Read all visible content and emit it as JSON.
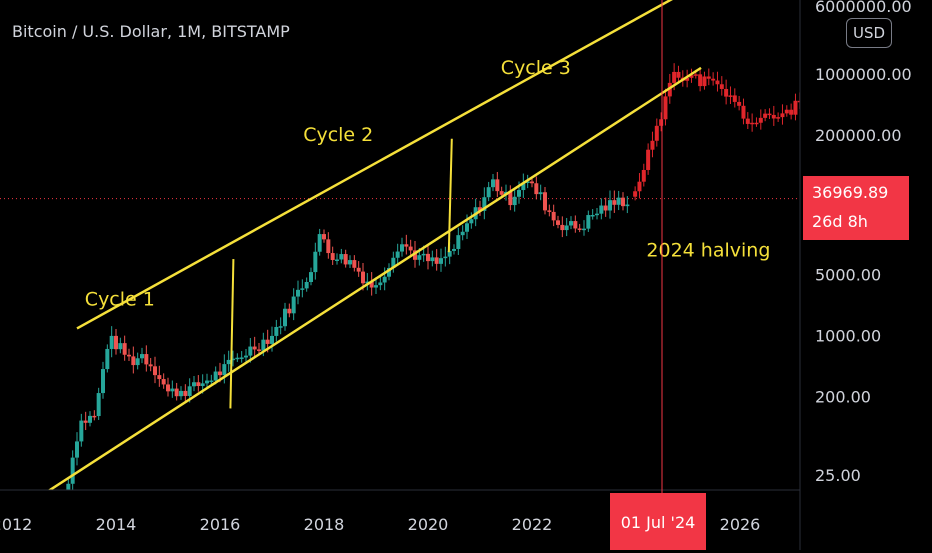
{
  "header": {
    "symbol_title": "Bitcoin / U.S. Dollar, 1M, BITSTAMP",
    "currency_button": "USD"
  },
  "price_label": {
    "price": "36969.89",
    "countdown": "26d 8h"
  },
  "crosshair": {
    "date_label": "01 Jul '24"
  },
  "colors": {
    "background": "#000000",
    "up_candle": "#26a69a",
    "down_candle": "#ef5350",
    "projection_candle": "#e0262b",
    "channel_lines": "#f5e03a",
    "annotation_text": "#f5e03a",
    "axis_text": "#d1d4dc",
    "crosshair": "#f23645"
  },
  "chart_data": {
    "type": "candlestick",
    "title": "Bitcoin / U.S. Dollar, 1M, BITSTAMP",
    "y_scale": "log",
    "x_tick_labels": [
      "2012",
      "2014",
      "2016",
      "2018",
      "2020",
      "2022",
      "2024",
      "2026"
    ],
    "y_tick_labels": [
      "6000000.00",
      "1000000.00",
      "200000.00",
      "5000.00",
      "1000.00",
      "200.00",
      "25.00"
    ],
    "last_price": 36969.89,
    "channel": {
      "lower": [
        {
          "x": 2012.35,
          "y": 12
        },
        {
          "x": 2025.25,
          "y": 1170000
        }
      ],
      "upper": [
        {
          "x": 2013.25,
          "y": 1200
        },
        {
          "x": 2025.25,
          "y": 11000000
        }
      ]
    },
    "cycle_markers": [
      {
        "x": 2016.2,
        "from": 145,
        "to": 7500
      },
      {
        "x": 2020.4,
        "from": 9000,
        "to": 180000
      }
    ],
    "annotations": [
      {
        "text": "Cycle 1",
        "x": 2013.4,
        "y": 2200
      },
      {
        "text": "Cycle 2",
        "x": 2017.6,
        "y": 170000
      },
      {
        "text": "Cycle 3",
        "x": 2021.4,
        "y": 1000000
      },
      {
        "text": "2024 halving",
        "x": 2024.2,
        "y": 8000
      }
    ],
    "halving_marker_x": 2024.5,
    "historical": [
      {
        "x": 2013.0,
        "y": 13
      },
      {
        "x": 2013.3,
        "y": 100
      },
      {
        "x": 2013.6,
        "y": 120
      },
      {
        "x": 2013.85,
        "y": 900
      },
      {
        "x": 2014.0,
        "y": 800
      },
      {
        "x": 2014.3,
        "y": 500
      },
      {
        "x": 2014.5,
        "y": 600
      },
      {
        "x": 2014.8,
        "y": 380
      },
      {
        "x": 2015.0,
        "y": 220
      },
      {
        "x": 2015.5,
        "y": 250
      },
      {
        "x": 2016.0,
        "y": 380
      },
      {
        "x": 2016.5,
        "y": 650
      },
      {
        "x": 2017.0,
        "y": 1000
      },
      {
        "x": 2017.4,
        "y": 2500
      },
      {
        "x": 2017.7,
        "y": 5000
      },
      {
        "x": 2017.95,
        "y": 15000
      },
      {
        "x": 2018.1,
        "y": 9000
      },
      {
        "x": 2018.5,
        "y": 7000
      },
      {
        "x": 2018.9,
        "y": 3800
      },
      {
        "x": 2019.0,
        "y": 3500
      },
      {
        "x": 2019.45,
        "y": 12000
      },
      {
        "x": 2019.8,
        "y": 8000
      },
      {
        "x": 2020.2,
        "y": 6500
      },
      {
        "x": 2020.5,
        "y": 10000
      },
      {
        "x": 2020.9,
        "y": 25000
      },
      {
        "x": 2021.25,
        "y": 58000
      },
      {
        "x": 2021.55,
        "y": 35000
      },
      {
        "x": 2021.85,
        "y": 62000
      },
      {
        "x": 2022.15,
        "y": 40000
      },
      {
        "x": 2022.45,
        "y": 20000
      },
      {
        "x": 2022.9,
        "y": 17000
      },
      {
        "x": 2023.3,
        "y": 28000
      },
      {
        "x": 2023.7,
        "y": 35000
      },
      {
        "x": 2023.9,
        "y": 37000
      }
    ],
    "projection": [
      {
        "x": 2023.9,
        "y": 37000
      },
      {
        "x": 2024.05,
        "y": 60000
      },
      {
        "x": 2024.25,
        "y": 130000
      },
      {
        "x": 2024.45,
        "y": 260000
      },
      {
        "x": 2024.6,
        "y": 700000
      },
      {
        "x": 2024.75,
        "y": 1300000
      },
      {
        "x": 2024.9,
        "y": 850000
      },
      {
        "x": 2025.1,
        "y": 900000
      },
      {
        "x": 2025.4,
        "y": 800000
      },
      {
        "x": 2025.7,
        "y": 620000
      },
      {
        "x": 2025.95,
        "y": 420000
      },
      {
        "x": 2026.2,
        "y": 270000
      },
      {
        "x": 2026.45,
        "y": 300000
      },
      {
        "x": 2026.7,
        "y": 330000
      },
      {
        "x": 2026.95,
        "y": 390000
      },
      {
        "x": 2027.2,
        "y": 460000
      },
      {
        "x": 2027.4,
        "y": 600000
      }
    ]
  }
}
